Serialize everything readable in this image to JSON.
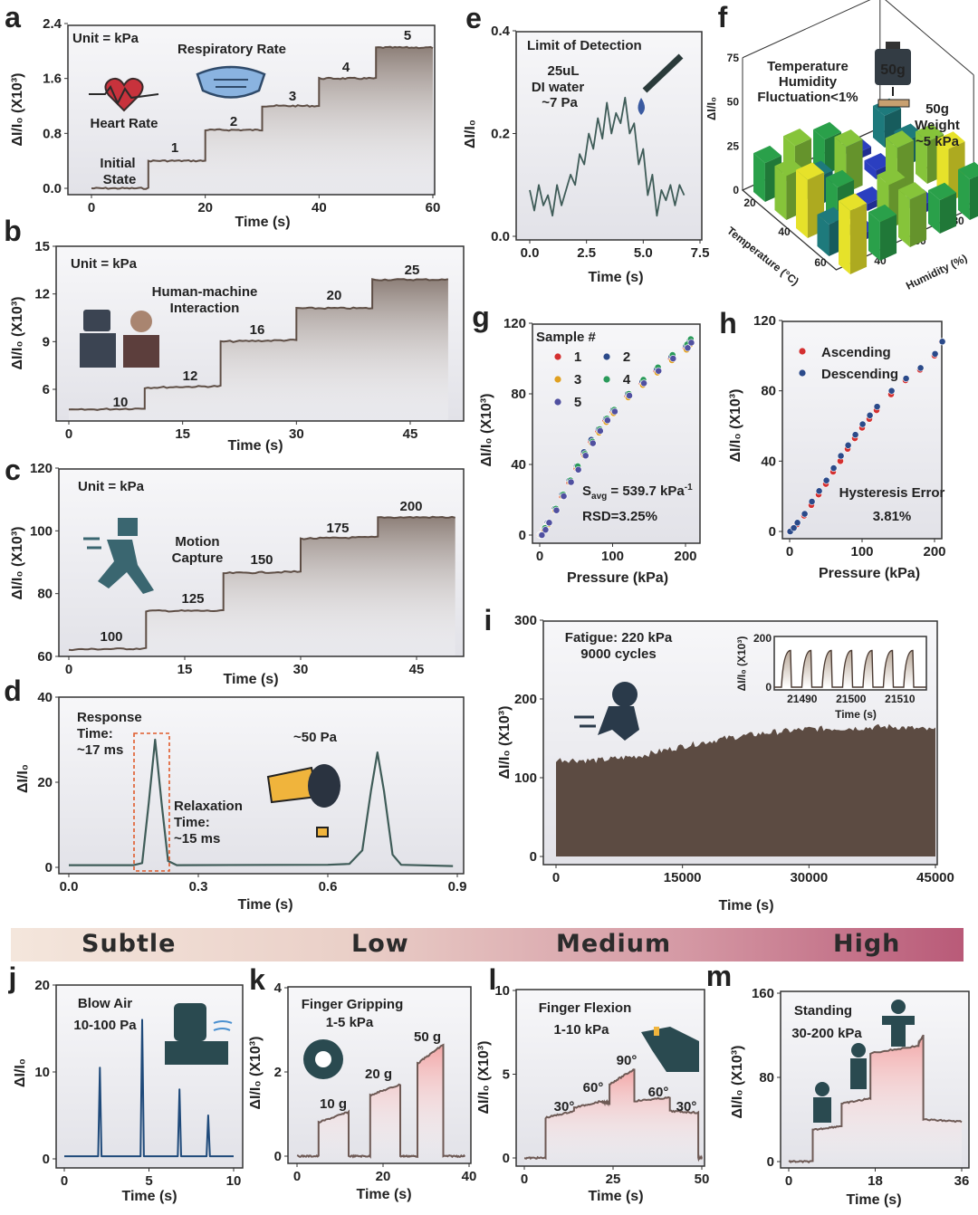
{
  "banner": {
    "levels": [
      "Subtle",
      "Low",
      "Medium",
      "High"
    ]
  },
  "colors": {
    "step_line": "#5e4e45",
    "teal_line": "#3f5c58",
    "blue_line": "#1f4a7a",
    "pink_fill": "#f2aaaa",
    "fatigue_fill": "#5c4b42"
  },
  "chart_data": [
    {
      "id": "a",
      "type": "line",
      "xlabel": "Time (s)",
      "ylabel": "ΔI/I₀ (X10³)",
      "xlim": [
        0,
        60
      ],
      "ylim": [
        0,
        2.4
      ],
      "xticks": [
        0,
        20,
        40,
        60
      ],
      "yticks": [
        "0.0",
        "0.8",
        "1.6",
        "2.4"
      ],
      "steps": [
        [
          0,
          10,
          0,
          0
        ],
        [
          10,
          20,
          0.4,
          0.4
        ],
        [
          20,
          30,
          0.85,
          0.85
        ],
        [
          30,
          40,
          1.2,
          1.2
        ],
        [
          40,
          50,
          1.6,
          1.6
        ],
        [
          50,
          60,
          2.05,
          2.05
        ]
      ],
      "annotations": [
        "Unit = kPa",
        "Respiratory Rate",
        "Heart Rate",
        "Initial",
        "State",
        "1",
        "2",
        "3",
        "4",
        "5"
      ]
    },
    {
      "id": "b",
      "type": "line",
      "xlabel": "Time (s)",
      "ylabel": "ΔI/I₀ (X10³)",
      "xlim": [
        0,
        45
      ],
      "ylim": [
        6,
        15
      ],
      "xticks": [
        0,
        15,
        30,
        45
      ],
      "yticks": [
        "6",
        "9",
        "12",
        "15"
      ],
      "steps": [
        [
          0,
          10,
          4.7,
          4.8
        ],
        [
          10,
          20,
          6.1,
          6.2
        ],
        [
          20,
          30,
          9.0,
          9.1
        ],
        [
          30,
          40,
          11.1,
          11.1
        ],
        [
          40,
          50,
          12.9,
          12.9
        ]
      ],
      "annotations": [
        "Unit = kPa",
        "Human-machine",
        "Interaction",
        "10",
        "12",
        "16",
        "20",
        "25"
      ]
    },
    {
      "id": "c",
      "type": "line",
      "xlabel": "Time (s)",
      "ylabel": "ΔI/I₀ (X10³)",
      "xlim": [
        0,
        45
      ],
      "ylim": [
        60,
        120
      ],
      "xticks": [
        0,
        15,
        30,
        45
      ],
      "yticks": [
        "60",
        "80",
        "100",
        "120"
      ],
      "steps": [
        [
          0,
          10,
          62.2,
          62.5
        ],
        [
          10,
          20,
          74.5,
          74.5
        ],
        [
          20,
          30,
          86.5,
          87
        ],
        [
          30,
          40,
          97.5,
          98
        ],
        [
          40,
          50,
          104.3,
          104.3
        ]
      ],
      "annotations": [
        "Unit = kPa",
        "Motion",
        "Capture",
        "100",
        "125",
        "150",
        "175",
        "200"
      ]
    },
    {
      "id": "d",
      "type": "line",
      "xlabel": "Time (s)",
      "ylabel": "ΔI/I₀",
      "xlim": [
        0,
        0.9
      ],
      "ylim": [
        0,
        40
      ],
      "xticks": [
        "0.0",
        "0.3",
        "0.6",
        "0.9"
      ],
      "yticks": [
        "0",
        "20",
        "40"
      ],
      "points": [
        [
          0,
          0.5
        ],
        [
          0.15,
          0.5
        ],
        [
          0.17,
          1
        ],
        [
          0.185,
          15
        ],
        [
          0.2,
          30
        ],
        [
          0.215,
          15
        ],
        [
          0.23,
          1.5
        ],
        [
          0.25,
          0.5
        ],
        [
          0.6,
          0.6
        ],
        [
          0.65,
          0.8
        ],
        [
          0.68,
          4
        ],
        [
          0.7,
          18
        ],
        [
          0.715,
          27
        ],
        [
          0.73,
          18
        ],
        [
          0.75,
          3
        ],
        [
          0.77,
          0.6
        ],
        [
          0.89,
          0.3
        ]
      ],
      "annotations": [
        "Response",
        "Time:",
        "~17 ms",
        "Relaxation",
        "Time:",
        "~15 ms",
        "~50 Pa"
      ]
    },
    {
      "id": "e",
      "type": "line",
      "xlabel": "Time (s)",
      "ylabel": "ΔI/I₀",
      "xlim": [
        0,
        7.5
      ],
      "ylim": [
        0,
        0.4
      ],
      "xticks": [
        "0.0",
        "2.5",
        "5.0",
        "7.5"
      ],
      "yticks": [
        "0.0",
        "0.2",
        "0.4"
      ],
      "points": [
        [
          0,
          0.09
        ],
        [
          0.2,
          0.05
        ],
        [
          0.4,
          0.1
        ],
        [
          0.6,
          0.06
        ],
        [
          0.8,
          0.08
        ],
        [
          1.0,
          0.04
        ],
        [
          1.2,
          0.1
        ],
        [
          1.4,
          0.06
        ],
        [
          1.6,
          0.09
        ],
        [
          1.8,
          0.12
        ],
        [
          2.0,
          0.1
        ],
        [
          2.2,
          0.16
        ],
        [
          2.4,
          0.14
        ],
        [
          2.6,
          0.2
        ],
        [
          2.8,
          0.17
        ],
        [
          3.0,
          0.23
        ],
        [
          3.2,
          0.19
        ],
        [
          3.4,
          0.26
        ],
        [
          3.6,
          0.2
        ],
        [
          3.8,
          0.24
        ],
        [
          4.0,
          0.22
        ],
        [
          4.2,
          0.27
        ],
        [
          4.4,
          0.2
        ],
        [
          4.6,
          0.22
        ],
        [
          4.8,
          0.14
        ],
        [
          5.0,
          0.17
        ],
        [
          5.2,
          0.08
        ],
        [
          5.4,
          0.12
        ],
        [
          5.6,
          0.04
        ],
        [
          5.8,
          0.09
        ],
        [
          6.0,
          0.07
        ],
        [
          6.2,
          0.1
        ],
        [
          6.4,
          0.06
        ],
        [
          6.6,
          0.1
        ],
        [
          6.8,
          0.08
        ]
      ],
      "annotations": [
        "Limit of Detection",
        "25uL",
        "DI water",
        "~7 Pa"
      ]
    },
    {
      "id": "f",
      "type": "bar3d",
      "xlabel": "Temperature (°C)",
      "ylabel": "ΔI/I₀",
      "zlabel": "Humidity (%)",
      "xticks": [
        "20",
        "40",
        "60"
      ],
      "yticks": [
        "0",
        "25",
        "50",
        "75"
      ],
      "zticks": [
        "40",
        "60",
        "80"
      ],
      "values": [
        [
          22,
          24,
          20,
          4,
          18
        ],
        [
          25,
          16,
          26,
          5,
          14
        ],
        [
          33,
          21,
          4,
          28,
          24
        ],
        [
          18,
          4,
          25,
          5,
          30
        ],
        [
          36,
          22,
          27,
          19,
          23
        ]
      ],
      "annotations": [
        "Temperature",
        "Humidity",
        "Fluctuation<1%",
        "50g",
        "Weight",
        "~5 kPa"
      ],
      "weight_label": "50g"
    },
    {
      "id": "g",
      "type": "scatter",
      "xlabel": "Pressure (kPa)",
      "ylabel": "ΔI/I₀ (X10³)",
      "xlim": [
        0,
        200
      ],
      "ylim": [
        0,
        120
      ],
      "xticks": [
        0,
        100,
        200
      ],
      "yticks": [
        0,
        40,
        80,
        120
      ],
      "legend_title": "Sample #",
      "x": [
        0,
        5,
        10,
        20,
        30,
        40,
        50,
        60,
        70,
        80,
        90,
        100,
        120,
        140,
        160,
        180,
        200,
        205
      ],
      "series": [
        {
          "name": "1",
          "color": "#d43030",
          "values": [
            0,
            3,
            7,
            15,
            22,
            30,
            38,
            46,
            53,
            59,
            65,
            70,
            79,
            86,
            93,
            100,
            106,
            109
          ]
        },
        {
          "name": "2",
          "color": "#2b4a8a",
          "values": [
            0,
            3,
            7,
            15,
            23,
            31,
            39,
            47,
            54,
            60,
            66,
            71,
            80,
            87,
            94,
            101,
            107,
            110
          ]
        },
        {
          "name": "3",
          "color": "#e0a020",
          "values": [
            0,
            3,
            6,
            14,
            22,
            30,
            38,
            45,
            52,
            58,
            64,
            69,
            78,
            85,
            92,
            99,
            105,
            108
          ]
        },
        {
          "name": "4",
          "color": "#2a9a5a",
          "values": [
            0,
            4,
            7,
            15,
            23,
            31,
            39,
            46,
            53,
            60,
            66,
            71,
            80,
            88,
            95,
            102,
            108,
            111
          ]
        },
        {
          "name": "5",
          "color": "#5050a0",
          "values": [
            0,
            3,
            7,
            14,
            22,
            30,
            37,
            45,
            52,
            59,
            65,
            70,
            79,
            86,
            93,
            100,
            106,
            109
          ]
        }
      ],
      "annotations": [
        "S",
        "avg",
        " = 539.7 kPa",
        "-1",
        "RSD=3.25%"
      ]
    },
    {
      "id": "h",
      "type": "scatter",
      "xlabel": "Pressure (kPa)",
      "ylabel": "ΔI/I₀ (X10³)",
      "xlim": [
        0,
        200
      ],
      "ylim": [
        0,
        120
      ],
      "xticks": [
        0,
        100,
        200
      ],
      "yticks": [
        0,
        40,
        80,
        120
      ],
      "x": [
        0,
        5,
        10,
        20,
        30,
        40,
        50,
        60,
        70,
        80,
        90,
        100,
        110,
        120,
        140,
        160,
        180,
        200,
        210
      ],
      "series": [
        {
          "name": "Ascending",
          "color": "#d43030",
          "values": [
            0,
            2,
            4,
            9,
            15,
            21,
            27,
            34,
            40,
            47,
            53,
            59,
            64,
            69,
            78,
            86,
            92,
            100,
            108
          ]
        },
        {
          "name": "Descending",
          "color": "#2b4a8a",
          "values": [
            0,
            2,
            5,
            10,
            17,
            23,
            29,
            36,
            43,
            49,
            55,
            61,
            66,
            71,
            80,
            87,
            93,
            101,
            108
          ]
        }
      ],
      "annotations": [
        "Hysteresis Error",
        "3.81%"
      ]
    },
    {
      "id": "i",
      "type": "area",
      "xlabel": "Time (s)",
      "ylabel": "ΔI/I₀ (X10³)",
      "xlim": [
        0,
        45000
      ],
      "ylim": [
        0,
        300
      ],
      "xticks": [
        0,
        15000,
        30000,
        45000
      ],
      "yticks": [
        0,
        100,
        200,
        300
      ],
      "envelope": [
        [
          0,
          123
        ],
        [
          5000,
          122
        ],
        [
          10000,
          128
        ],
        [
          15000,
          140
        ],
        [
          20000,
          150
        ],
        [
          25000,
          157
        ],
        [
          30000,
          162
        ],
        [
          35000,
          163
        ],
        [
          40000,
          165
        ],
        [
          45000,
          160
        ]
      ],
      "annotations": [
        "Fatigue: 220 kPa",
        "9000 cycles"
      ],
      "inset": {
        "xlabel": "Time (s)",
        "ylabel": "ΔI/I₀ (X10³)",
        "xticks": [
          21490,
          21500,
          21510
        ],
        "yticks": [
          0,
          200
        ],
        "pulse_peak": 150,
        "pulses": 7
      }
    },
    {
      "id": "j",
      "type": "line",
      "xlabel": "Time (s)",
      "ylabel": "ΔI/I₀",
      "xlim": [
        0,
        10
      ],
      "ylim": [
        0,
        20
      ],
      "xticks": [
        0,
        5,
        10
      ],
      "yticks": [
        0,
        10,
        20
      ],
      "points": [
        [
          0,
          0.3
        ],
        [
          2.0,
          0.3
        ],
        [
          2.1,
          10.5
        ],
        [
          2.2,
          0.3
        ],
        [
          4.5,
          0.3
        ],
        [
          4.6,
          16
        ],
        [
          4.7,
          0.3
        ],
        [
          6.7,
          0.3
        ],
        [
          6.8,
          8
        ],
        [
          6.9,
          0.3
        ],
        [
          8.4,
          0.3
        ],
        [
          8.5,
          5
        ],
        [
          8.6,
          0.3
        ],
        [
          10,
          0.3
        ]
      ],
      "annotations": [
        "Blow Air",
        "10-100 Pa"
      ]
    },
    {
      "id": "k",
      "type": "line",
      "xlabel": "Time (s)",
      "ylabel": "ΔI/I₀ (X10³)",
      "xlim": [
        0,
        40
      ],
      "ylim": [
        0,
        4
      ],
      "xticks": [
        0,
        20,
        40
      ],
      "yticks": [
        0,
        2,
        4
      ],
      "steps": [
        [
          0,
          5,
          0,
          0
        ],
        [
          5,
          12,
          0.8,
          1.05
        ],
        [
          12,
          17,
          0,
          0
        ],
        [
          17,
          24,
          1.45,
          1.7
        ],
        [
          24,
          28,
          0,
          0
        ],
        [
          28,
          34,
          2.2,
          2.65
        ],
        [
          34,
          39,
          0,
          0
        ]
      ],
      "annotations": [
        "Finger Gripping",
        "1-5 kPa",
        "10 g",
        "20 g",
        "50 g"
      ]
    },
    {
      "id": "l",
      "type": "line",
      "xlabel": "Time (s)",
      "ylabel": "ΔI/I₀ (X10³)",
      "xlim": [
        0,
        50
      ],
      "ylim": [
        0,
        10
      ],
      "xticks": [
        0,
        25,
        50
      ],
      "yticks": [
        0,
        5,
        10
      ],
      "steps": [
        [
          0,
          6,
          0,
          0
        ],
        [
          6,
          14,
          2.4,
          2.8
        ],
        [
          14,
          22,
          3.0,
          3.4
        ],
        [
          22,
          24,
          3.3,
          3.3
        ],
        [
          24,
          31,
          4.4,
          5.3
        ],
        [
          31,
          41,
          3.4,
          3.6
        ],
        [
          41,
          49,
          2.8,
          2.7
        ],
        [
          49,
          50,
          0,
          0
        ]
      ],
      "annotations": [
        "Finger Flexion",
        "1-10 kPa",
        "30°",
        "60°",
        "90°",
        "60°",
        "30°"
      ]
    },
    {
      "id": "m",
      "type": "line",
      "xlabel": "Time (s)",
      "ylabel": "ΔI/I₀ (X10³)",
      "xlim": [
        0,
        36
      ],
      "ylim": [
        0,
        160
      ],
      "xticks": [
        0,
        18,
        36
      ],
      "yticks": [
        0,
        80,
        160
      ],
      "steps": [
        [
          0,
          5,
          0,
          0
        ],
        [
          5,
          11,
          30,
          34
        ],
        [
          11,
          17,
          55,
          60
        ],
        [
          17,
          27,
          103,
          110
        ],
        [
          27,
          28,
          112,
          120
        ],
        [
          28,
          36,
          40,
          38
        ]
      ],
      "annotations": [
        "Standing",
        "30-200 kPa"
      ]
    }
  ]
}
